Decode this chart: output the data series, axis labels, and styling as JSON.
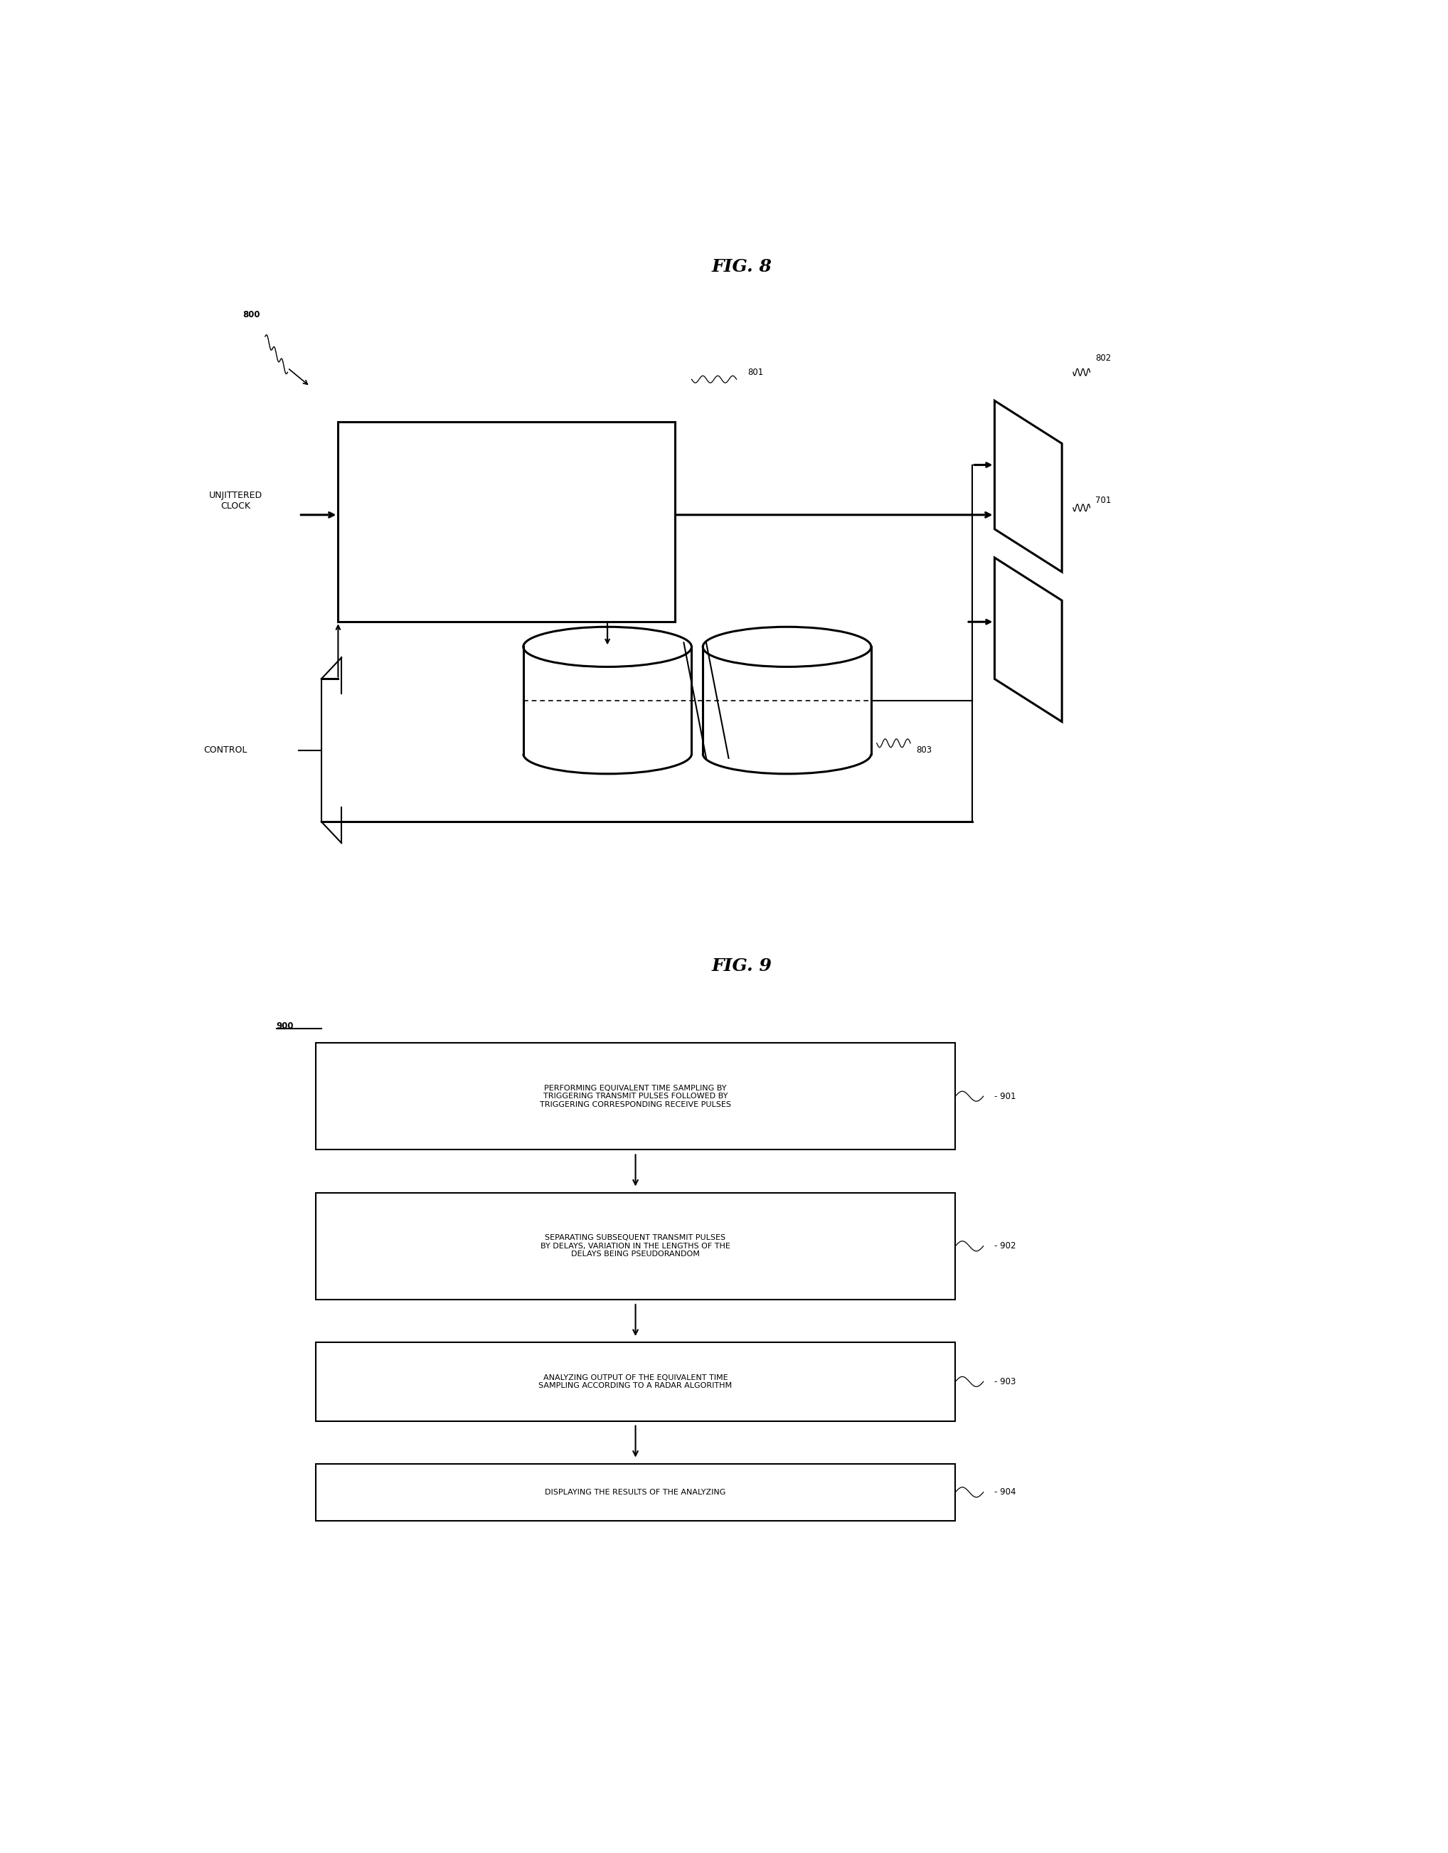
{
  "fig_width": 20.36,
  "fig_height": 26.05,
  "bg_color": "#ffffff",
  "fig8_title": "FIG. 8",
  "fig9_title": "FIG. 9",
  "fig8_label": "800",
  "fig9_label": "900",
  "box801_label": "801",
  "box802_label": "802",
  "box803_label": "803",
  "box701_label": "701",
  "label901": "901",
  "label902": "902",
  "label903": "903",
  "label904": "904",
  "text_unjittered": "UNJITTERED\nCLOCK",
  "text_control": "CONTROL",
  "box901_text": "PERFORMING EQUIVALENT TIME SAMPLING BY\nTRIGGERING TRANSMIT PULSES FOLLOWED BY\nTRIGGERING CORRESPONDING RECEIVE PULSES",
  "box902_text": "SEPARATING SUBSEQUENT TRANSMIT PULSES\nBY DELAYS, VARIATION IN THE LENGTHS OF THE\nDELAYS BEING PSEUDORANDOM",
  "box903_text": "ANALYZING OUTPUT OF THE EQUIVALENT TIME\nSAMPLING ACCORDING TO A RADAR ALGORITHM",
  "box904_text": "DISPLAYING THE RESULTS OF THE ANALYZING"
}
